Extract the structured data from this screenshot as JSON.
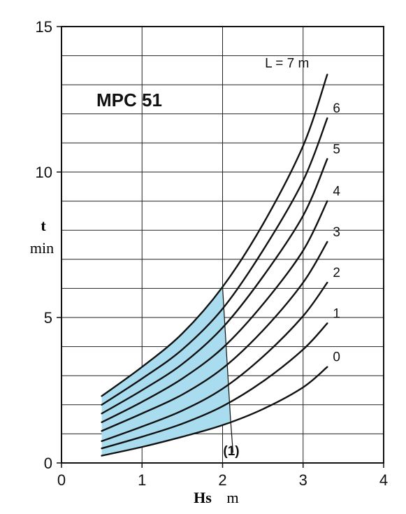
{
  "chart_data": {
    "type": "line",
    "title": "MPC 51",
    "xlabel": "Hs",
    "xunit": "m",
    "ylabel": "t",
    "yunit": "min",
    "xlim": [
      0,
      4
    ],
    "ylim": [
      0,
      15
    ],
    "x_ticks": [
      "0",
      "1",
      "2",
      "3",
      "4"
    ],
    "y_ticks": [
      "0",
      "5",
      "10",
      "15"
    ],
    "x_ticks_values": [
      0,
      1,
      2,
      3,
      4
    ],
    "y_ticks_values": [
      0,
      5,
      10,
      15
    ],
    "grid": true,
    "series": [
      {
        "name": "0",
        "x": [
          0.5,
          1.0,
          1.5,
          2.0,
          2.5,
          3.0,
          3.3
        ],
        "y": [
          0.25,
          0.55,
          0.9,
          1.3,
          1.85,
          2.6,
          3.3
        ]
      },
      {
        "name": "1",
        "x": [
          0.5,
          1.0,
          1.5,
          2.0,
          2.5,
          3.0,
          3.3
        ],
        "y": [
          0.5,
          0.9,
          1.35,
          1.95,
          2.8,
          3.9,
          4.8
        ]
      },
      {
        "name": "2",
        "x": [
          0.5,
          1.0,
          1.5,
          2.0,
          2.5,
          3.0,
          3.3
        ],
        "y": [
          0.75,
          1.25,
          1.8,
          2.55,
          3.65,
          5.05,
          6.2
        ]
      },
      {
        "name": "3",
        "x": [
          0.5,
          1.0,
          1.5,
          2.0,
          2.5,
          3.0,
          3.3
        ],
        "y": [
          1.1,
          1.7,
          2.35,
          3.25,
          4.55,
          6.2,
          7.6
        ]
      },
      {
        "name": "4",
        "x": [
          0.5,
          1.0,
          1.5,
          2.0,
          2.5,
          3.0,
          3.3
        ],
        "y": [
          1.4,
          2.1,
          2.9,
          3.95,
          5.45,
          7.3,
          9.0
        ]
      },
      {
        "name": "5",
        "x": [
          0.5,
          1.0,
          1.5,
          2.0,
          2.5,
          3.0,
          3.3
        ],
        "y": [
          1.7,
          2.5,
          3.4,
          4.65,
          6.4,
          8.5,
          10.45
        ]
      },
      {
        "name": "6",
        "x": [
          0.5,
          1.0,
          1.5,
          2.0,
          2.5,
          3.0,
          3.3
        ],
        "y": [
          2.0,
          2.9,
          3.9,
          5.3,
          7.3,
          9.7,
          11.85
        ]
      },
      {
        "name": "L = 7 m",
        "x": [
          0.5,
          1.0,
          1.5,
          2.0,
          2.5,
          3.0,
          3.3
        ],
        "y": [
          2.3,
          3.3,
          4.45,
          6.05,
          8.2,
          10.9,
          13.35
        ]
      }
    ],
    "shaded_region": {
      "color": "#a9dcef",
      "upper": {
        "x": [
          0.5,
          1.0,
          1.5,
          1.75,
          2.0
        ],
        "y": [
          2.3,
          3.3,
          4.45,
          5.15,
          6.05
        ]
      },
      "boundary": {
        "x": [
          2.0,
          2.1
        ],
        "y": [
          6.05,
          1.45
        ]
      },
      "lower": {
        "x": [
          2.1,
          2.0,
          1.5,
          1.0,
          0.5
        ],
        "y": [
          1.45,
          1.3,
          0.9,
          0.55,
          0.25
        ]
      }
    },
    "annotations": [
      {
        "text": "(1)",
        "pointer": {
          "x": [
            2.1,
            2.13
          ],
          "y": [
            1.45,
            0.35
          ]
        }
      }
    ]
  }
}
